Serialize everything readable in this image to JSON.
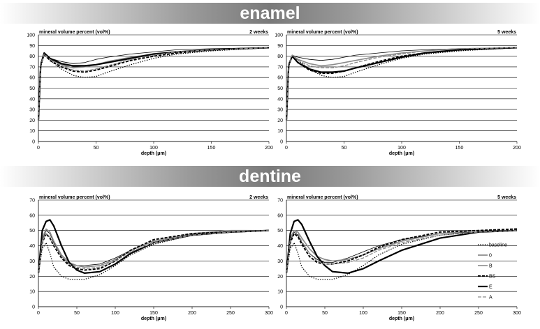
{
  "sections": {
    "enamel_title": "enamel",
    "dentine_title": "dentine"
  },
  "chart_data": [
    {
      "id": "enamel-2w",
      "type": "line",
      "title": "mineral volume percent (vol%)",
      "subtitle": "2 weeks",
      "xlabel": "depth (μm)",
      "xlim": [
        0,
        200
      ],
      "ylim": [
        0,
        100
      ],
      "xticks": [
        0,
        50,
        100,
        150,
        200
      ],
      "yticks": [
        0,
        10,
        20,
        30,
        40,
        50,
        60,
        70,
        80,
        90,
        100
      ],
      "grid": "horizontal",
      "series": [
        {
          "name": "baseline",
          "x": [
            0,
            2,
            5,
            10,
            20,
            30,
            40,
            50,
            60,
            80,
            100,
            120,
            150,
            200
          ],
          "y": [
            20,
            70,
            81,
            76,
            68,
            62,
            60,
            61,
            65,
            72,
            78,
            82,
            85,
            88
          ]
        },
        {
          "name": "0",
          "x": [
            0,
            2,
            5,
            10,
            20,
            30,
            40,
            50,
            60,
            80,
            100,
            120,
            150,
            200
          ],
          "y": [
            20,
            72,
            82,
            78,
            75,
            73,
            74,
            77,
            79,
            82,
            84,
            86,
            87,
            88
          ]
        },
        {
          "name": "B",
          "x": [
            0,
            2,
            5,
            10,
            20,
            30,
            40,
            50,
            60,
            80,
            100,
            120,
            150,
            200
          ],
          "y": [
            20,
            72,
            82,
            77,
            72,
            69,
            70,
            72,
            75,
            79,
            82,
            84,
            86,
            88
          ]
        },
        {
          "name": "BS",
          "x": [
            0,
            2,
            5,
            10,
            20,
            30,
            40,
            50,
            60,
            80,
            100,
            120,
            150,
            200
          ],
          "y": [
            20,
            72,
            82,
            76,
            70,
            66,
            65,
            67,
            70,
            76,
            80,
            83,
            86,
            88
          ]
        },
        {
          "name": "E",
          "x": [
            0,
            2,
            5,
            10,
            20,
            30,
            40,
            50,
            60,
            80,
            100,
            120,
            150,
            200
          ],
          "y": [
            20,
            72,
            83,
            78,
            73,
            71,
            71,
            72,
            74,
            78,
            82,
            84,
            86,
            88
          ]
        },
        {
          "name": "A",
          "x": [
            0,
            2,
            5,
            10,
            20,
            30,
            40,
            50,
            60,
            80,
            100,
            120,
            150,
            200
          ],
          "y": [
            20,
            72,
            82,
            77,
            71,
            67,
            66,
            68,
            71,
            77,
            81,
            84,
            86,
            88
          ]
        }
      ]
    },
    {
      "id": "enamel-5w",
      "type": "line",
      "title": "mineral volume percent (vol%)",
      "subtitle": "5 weeks",
      "xlabel": "depth (μm)",
      "xlim": [
        0,
        200
      ],
      "ylim": [
        0,
        100
      ],
      "xticks": [
        0,
        50,
        100,
        150,
        200
      ],
      "yticks": [
        0,
        10,
        20,
        30,
        40,
        50,
        60,
        70,
        80,
        90,
        100
      ],
      "grid": "horizontal",
      "series": [
        {
          "name": "baseline",
          "x": [
            0,
            2,
            5,
            10,
            20,
            30,
            40,
            50,
            60,
            80,
            100,
            120,
            150,
            200
          ],
          "y": [
            20,
            70,
            81,
            76,
            68,
            62,
            60,
            61,
            65,
            72,
            78,
            82,
            85,
            88
          ]
        },
        {
          "name": "0",
          "x": [
            0,
            2,
            5,
            10,
            20,
            30,
            40,
            50,
            60,
            80,
            100,
            120,
            150,
            200
          ],
          "y": [
            20,
            72,
            81,
            79,
            77,
            76,
            77,
            79,
            81,
            83,
            85,
            86,
            87,
            88
          ]
        },
        {
          "name": "B",
          "x": [
            0,
            2,
            5,
            10,
            20,
            30,
            40,
            50,
            60,
            80,
            100,
            120,
            150,
            200
          ],
          "y": [
            20,
            72,
            81,
            77,
            73,
            71,
            72,
            74,
            76,
            80,
            83,
            85,
            87,
            88
          ]
        },
        {
          "name": "BS",
          "x": [
            0,
            2,
            5,
            10,
            20,
            30,
            40,
            50,
            60,
            80,
            100,
            120,
            150,
            200
          ],
          "y": [
            20,
            72,
            80,
            74,
            67,
            64,
            64,
            66,
            69,
            75,
            80,
            83,
            86,
            88
          ]
        },
        {
          "name": "E",
          "x": [
            0,
            2,
            5,
            10,
            20,
            30,
            40,
            50,
            60,
            80,
            100,
            120,
            150,
            200
          ],
          "y": [
            20,
            72,
            80,
            74,
            68,
            65,
            65,
            66,
            69,
            74,
            79,
            83,
            86,
            88
          ]
        },
        {
          "name": "A",
          "x": [
            0,
            2,
            5,
            10,
            20,
            30,
            40,
            50,
            60,
            80,
            100,
            120,
            150,
            200
          ],
          "y": [
            20,
            72,
            81,
            76,
            71,
            69,
            69,
            71,
            74,
            79,
            82,
            85,
            87,
            88
          ]
        }
      ]
    },
    {
      "id": "dentine-2w",
      "type": "line",
      "title": "mineral volume percent (vol%)",
      "subtitle": "2 weeks",
      "xlabel": "depth (μm)",
      "xlim": [
        0,
        300
      ],
      "ylim": [
        0,
        70
      ],
      "xticks": [
        0,
        50,
        100,
        150,
        200,
        250,
        300
      ],
      "yticks": [
        0,
        10,
        20,
        30,
        40,
        50,
        60,
        70
      ],
      "grid": "horizontal",
      "series": [
        {
          "name": "baseline",
          "x": [
            0,
            5,
            10,
            15,
            20,
            30,
            40,
            50,
            60,
            80,
            100,
            120,
            150,
            200,
            250,
            300
          ],
          "y": [
            22,
            38,
            42,
            35,
            26,
            20,
            18,
            18,
            18,
            21,
            27,
            34,
            41,
            47,
            49,
            50
          ]
        },
        {
          "name": "0",
          "x": [
            0,
            5,
            10,
            15,
            20,
            30,
            40,
            50,
            60,
            80,
            100,
            120,
            150,
            200,
            250,
            300
          ],
          "y": [
            22,
            44,
            50,
            48,
            42,
            33,
            28,
            27,
            27,
            28,
            32,
            37,
            43,
            48,
            49,
            50
          ]
        },
        {
          "name": "B",
          "x": [
            0,
            5,
            10,
            15,
            20,
            30,
            40,
            50,
            60,
            80,
            100,
            120,
            150,
            200,
            250,
            300
          ],
          "y": [
            22,
            45,
            51,
            49,
            43,
            34,
            29,
            27,
            26,
            27,
            31,
            37,
            43,
            48,
            50,
            50
          ]
        },
        {
          "name": "BS",
          "x": [
            0,
            5,
            10,
            15,
            20,
            30,
            40,
            50,
            60,
            80,
            100,
            120,
            150,
            200,
            250,
            300
          ],
          "y": [
            22,
            42,
            48,
            45,
            40,
            32,
            27,
            25,
            24,
            25,
            30,
            37,
            44,
            48,
            49,
            50
          ]
        },
        {
          "name": "E",
          "x": [
            0,
            5,
            10,
            15,
            20,
            30,
            40,
            50,
            60,
            80,
            100,
            120,
            150,
            200,
            250,
            300
          ],
          "y": [
            22,
            50,
            56,
            57,
            53,
            40,
            29,
            24,
            22,
            23,
            28,
            35,
            42,
            47,
            49,
            50
          ]
        },
        {
          "name": "A",
          "x": [
            0,
            5,
            10,
            15,
            20,
            30,
            40,
            50,
            60,
            80,
            100,
            120,
            150,
            200,
            250,
            300
          ],
          "y": [
            22,
            43,
            48,
            46,
            41,
            33,
            28,
            26,
            25,
            26,
            30,
            36,
            42,
            47,
            49,
            50
          ]
        }
      ]
    },
    {
      "id": "dentine-5w",
      "type": "line",
      "title": "mineral volume percent (vol%)",
      "subtitle": "5 weeks",
      "xlabel": "depth (μm)",
      "xlim": [
        0,
        300
      ],
      "ylim": [
        0,
        70
      ],
      "xticks": [
        0,
        50,
        100,
        150,
        200,
        250,
        300
      ],
      "yticks": [
        0,
        10,
        20,
        30,
        40,
        50,
        60,
        70
      ],
      "grid": "horizontal",
      "legend": "right",
      "series": [
        {
          "name": "baseline",
          "x": [
            0,
            5,
            10,
            15,
            20,
            30,
            40,
            50,
            60,
            80,
            100,
            120,
            150,
            200,
            250,
            300
          ],
          "y": [
            22,
            38,
            42,
            35,
            26,
            20,
            18,
            18,
            18,
            21,
            27,
            34,
            41,
            47,
            49,
            50
          ]
        },
        {
          "name": "0",
          "x": [
            0,
            5,
            10,
            15,
            20,
            30,
            40,
            50,
            60,
            80,
            100,
            120,
            150,
            200,
            250,
            300
          ],
          "y": [
            22,
            43,
            49,
            47,
            42,
            35,
            31,
            29,
            29,
            32,
            36,
            40,
            44,
            48,
            49,
            50
          ]
        },
        {
          "name": "B",
          "x": [
            0,
            5,
            10,
            15,
            20,
            30,
            40,
            50,
            60,
            80,
            100,
            120,
            150,
            200,
            250,
            300
          ],
          "y": [
            22,
            45,
            50,
            49,
            45,
            38,
            33,
            31,
            30,
            31,
            34,
            38,
            43,
            48,
            50,
            50
          ]
        },
        {
          "name": "BS",
          "x": [
            0,
            5,
            10,
            15,
            20,
            30,
            40,
            50,
            60,
            80,
            100,
            120,
            150,
            200,
            250,
            300
          ],
          "y": [
            22,
            42,
            48,
            46,
            41,
            33,
            29,
            28,
            28,
            30,
            34,
            39,
            44,
            49,
            50,
            51
          ]
        },
        {
          "name": "E",
          "x": [
            0,
            5,
            10,
            15,
            20,
            30,
            40,
            50,
            60,
            80,
            100,
            120,
            150,
            200,
            250,
            300
          ],
          "y": [
            22,
            48,
            56,
            57,
            54,
            43,
            33,
            27,
            23,
            22,
            25,
            30,
            37,
            45,
            49,
            50
          ]
        },
        {
          "name": "A",
          "x": [
            0,
            5,
            10,
            15,
            20,
            30,
            40,
            50,
            60,
            80,
            100,
            120,
            150,
            200,
            250,
            300
          ],
          "y": [
            22,
            44,
            50,
            48,
            43,
            35,
            30,
            28,
            28,
            29,
            32,
            37,
            42,
            47,
            49,
            50
          ]
        }
      ]
    }
  ],
  "series_styles": {
    "baseline": {
      "color": "#000000",
      "width": 1.2,
      "dash": "1.5 1.8"
    },
    "0": {
      "color": "#000000",
      "width": 0.8,
      "dash": ""
    },
    "B": {
      "color": "#8a8a8a",
      "width": 1.6,
      "dash": ""
    },
    "BS": {
      "color": "#000000",
      "width": 2.0,
      "dash": "4 2"
    },
    "E": {
      "color": "#000000",
      "width": 2.2,
      "dash": ""
    },
    "A": {
      "color": "#8a8a8a",
      "width": 1.3,
      "dash": "5 2"
    }
  }
}
